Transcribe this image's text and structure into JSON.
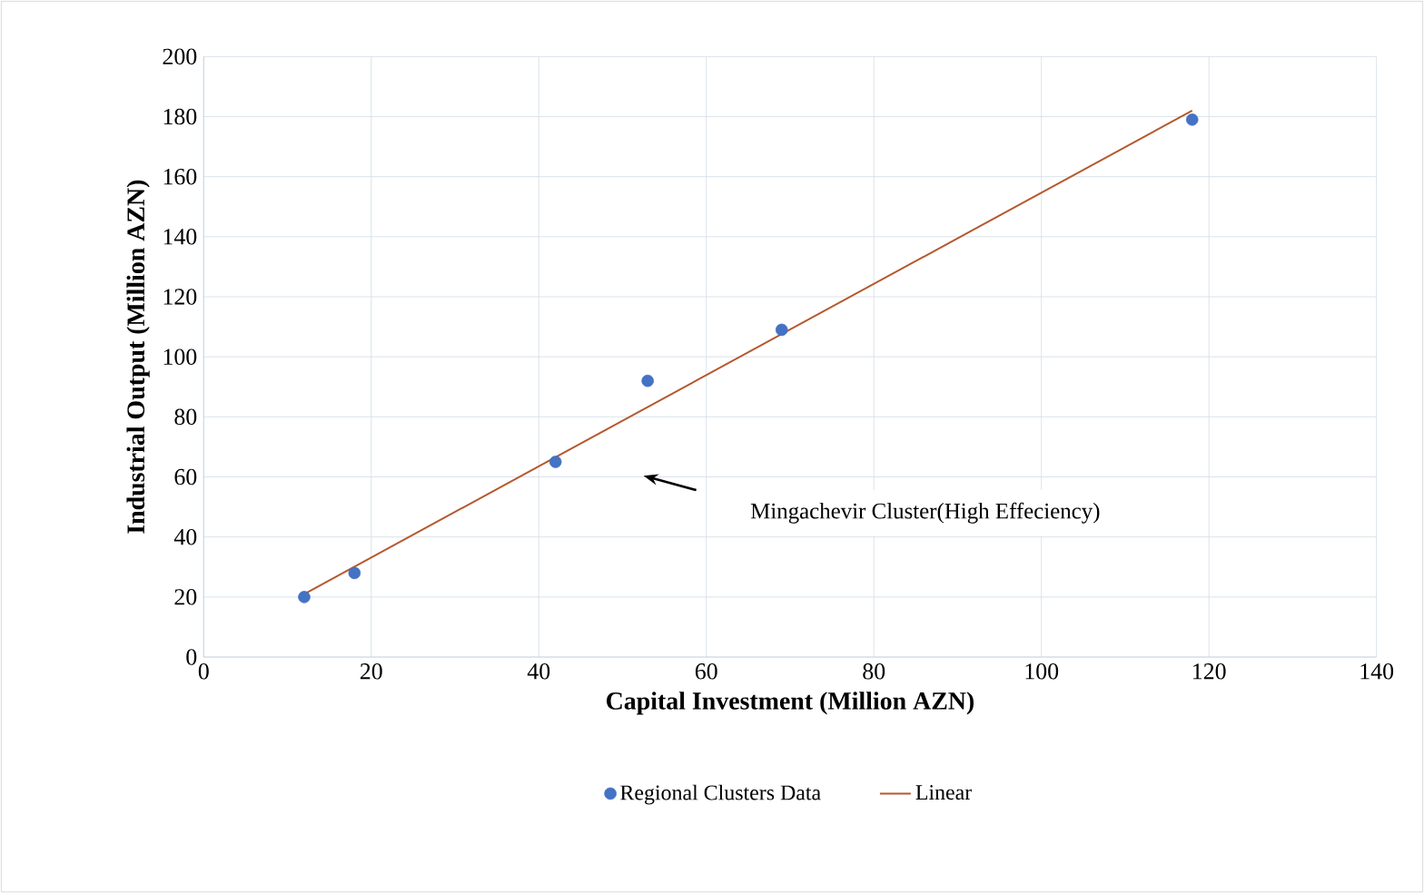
{
  "chart_data": {
    "type": "scatter",
    "xlabel": "Capital Investment (Million AZN)",
    "ylabel": "Industrial Output (Million AZN)",
    "xlim": [
      0,
      140
    ],
    "xticks": [
      0,
      20,
      40,
      60,
      80,
      100,
      120,
      140
    ],
    "ylim": [
      0,
      200
    ],
    "yticks": [
      0,
      20,
      40,
      60,
      80,
      100,
      120,
      140,
      160,
      180,
      200
    ],
    "grid": true,
    "legend": "bottom",
    "series": [
      {
        "name": "Regional Clusters Data",
        "color": "#4472c4",
        "marker": "circle",
        "x": [
          12,
          18,
          42,
          53,
          69,
          118
        ],
        "values": [
          20,
          28,
          65,
          92,
          109,
          179
        ]
      },
      {
        "name": "Linear",
        "type": "line",
        "color": "#b5582e",
        "marker": "none",
        "line_style": "solid",
        "x": [
          12,
          118
        ],
        "values": [
          21,
          182
        ]
      }
    ],
    "annotations": [
      "Mingachevir Cluster(High Effeciency)"
    ]
  }
}
